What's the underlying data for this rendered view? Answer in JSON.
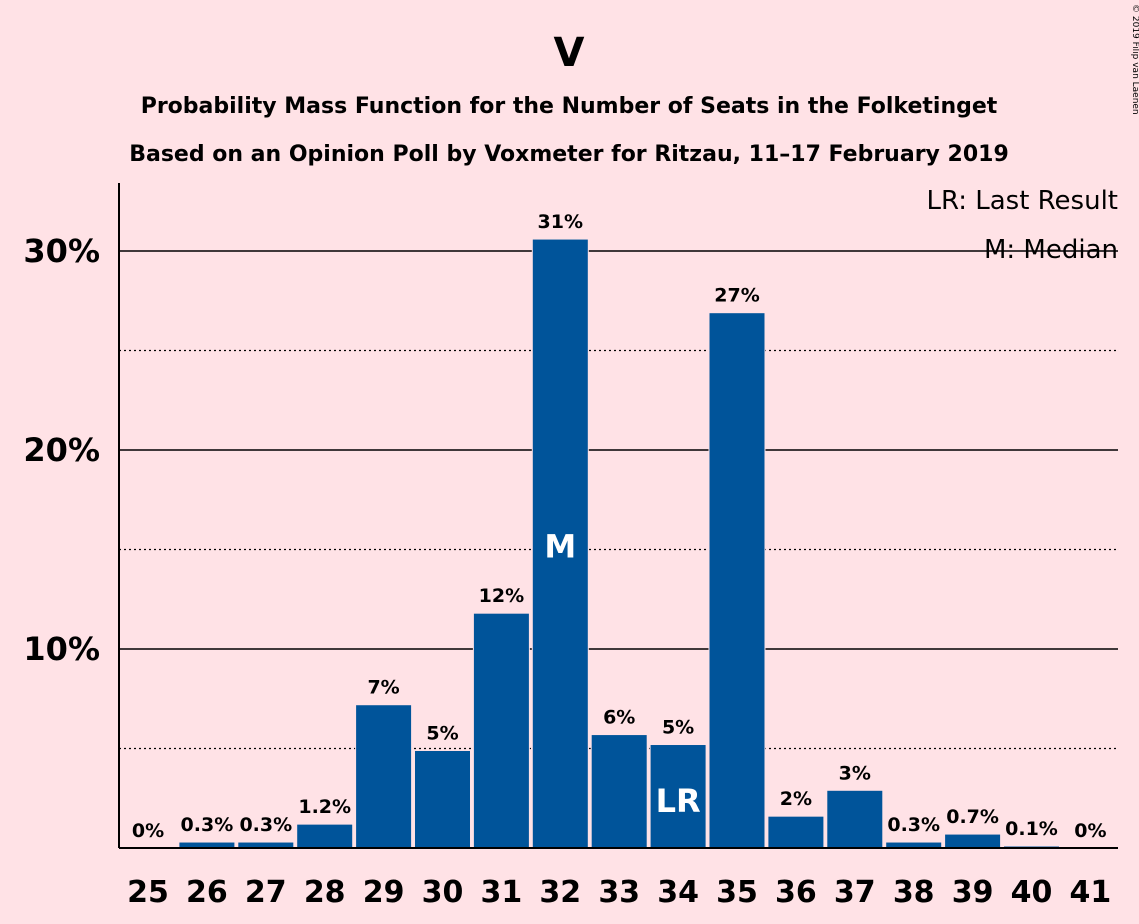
{
  "chart_data": {
    "type": "bar",
    "title": "V",
    "subtitle_1": "Probability Mass Function for the Number of Seats in the Folketinget",
    "subtitle_2": "Based on an Opinion Poll by Voxmeter for Ritzau, 11–17 February 2019",
    "categories": [
      "25",
      "26",
      "27",
      "28",
      "29",
      "30",
      "31",
      "32",
      "33",
      "34",
      "35",
      "36",
      "37",
      "38",
      "39",
      "40",
      "41"
    ],
    "values": [
      0,
      0.3,
      0.3,
      1.2,
      7.2,
      4.9,
      11.8,
      30.6,
      5.7,
      5.2,
      26.9,
      1.6,
      2.9,
      0.3,
      0.7,
      0.1,
      0
    ],
    "data_labels": [
      "0%",
      "0.3%",
      "0.3%",
      "1.2%",
      "7%",
      "5%",
      "12%",
      "31%",
      "6%",
      "5%",
      "27%",
      "2%",
      "3%",
      "0.3%",
      "0.7%",
      "0.1%",
      "0%"
    ],
    "ylim": [
      0,
      33
    ],
    "yticks": [
      10,
      20,
      30
    ],
    "ytick_labels": [
      "10%",
      "20%",
      "30%"
    ],
    "minor_gridlines": [
      5,
      15,
      25
    ],
    "bar_color": "#00549A",
    "background_color": "#FFE2E6",
    "median_marker": {
      "category": "32",
      "text": "M"
    },
    "last_result_marker": {
      "category": "34",
      "text": "LR"
    },
    "legend": {
      "position": "top-right",
      "items": [
        "LR: Last Result",
        "M: Median"
      ]
    },
    "copyright": "© 2019 Filip van Laenen"
  }
}
